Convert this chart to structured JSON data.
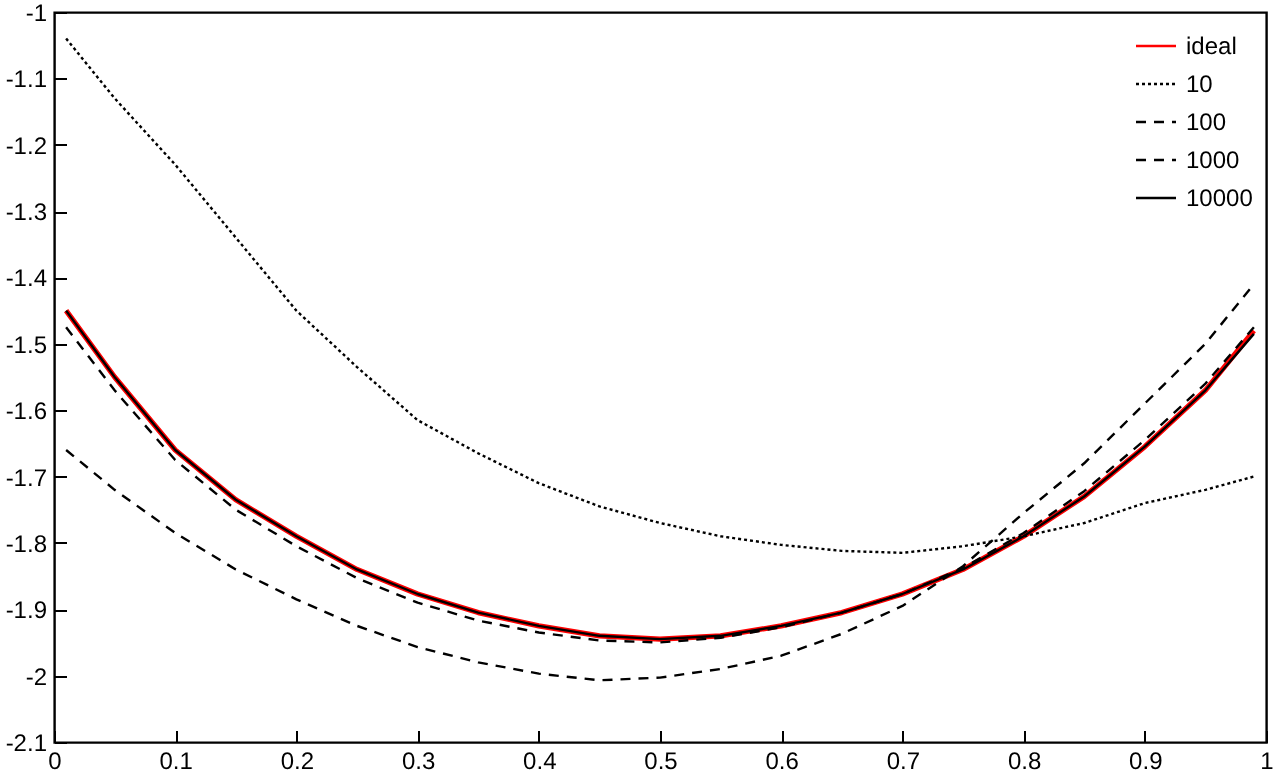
{
  "chart_data": {
    "type": "line",
    "x": [
      0.01,
      0.05,
      0.1,
      0.15,
      0.2,
      0.25,
      0.3,
      0.35,
      0.4,
      0.45,
      0.5,
      0.55,
      0.6,
      0.65,
      0.7,
      0.75,
      0.8,
      0.85,
      0.9,
      0.95,
      0.99
    ],
    "xlim": [
      0,
      1
    ],
    "xticks": [
      0,
      0.1,
      0.2,
      0.3,
      0.4,
      0.5,
      0.6,
      0.7,
      0.8,
      0.9,
      1
    ],
    "ylim": [
      -2.1,
      -1
    ],
    "yticks": [
      -2.1,
      -2,
      -1.9,
      -1.8,
      -1.7,
      -1.6,
      -1.5,
      -1.4,
      -1.3,
      -1.2,
      -1.1,
      -1
    ],
    "grid": false,
    "legend": "top right",
    "marker": "none",
    "series": [
      {
        "name": "ideal",
        "color": "#ff0000",
        "line_style": "solid",
        "values": [
          -1.45,
          -1.55,
          -1.66,
          -1.735,
          -1.79,
          -1.84,
          -1.877,
          -1.905,
          -1.925,
          -1.94,
          -1.945,
          -1.94,
          -1.925,
          -1.905,
          -1.877,
          -1.84,
          -1.79,
          -1.73,
          -1.655,
          -1.57,
          -1.48
        ]
      },
      {
        "name": "10",
        "color": "#000000",
        "line_style": "dotted",
        "values": [
          -1.04,
          -1.13,
          -1.23,
          -1.34,
          -1.45,
          -1.535,
          -1.615,
          -1.665,
          -1.71,
          -1.745,
          -1.77,
          -1.79,
          -1.803,
          -1.812,
          -1.815,
          -1.805,
          -1.79,
          -1.77,
          -1.74,
          -1.72,
          -1.7
        ]
      },
      {
        "name": "100",
        "color": "#000000",
        "line_style": "dashed",
        "values": [
          -1.66,
          -1.72,
          -1.785,
          -1.84,
          -1.885,
          -1.925,
          -1.957,
          -1.98,
          -1.997,
          -2.007,
          -2.003,
          -1.99,
          -1.97,
          -1.937,
          -1.895,
          -1.835,
          -1.755,
          -1.68,
          -1.59,
          -1.5,
          -1.41
        ]
      },
      {
        "name": "1000",
        "color": "#000000",
        "line_style": "dashed",
        "values": [
          -1.475,
          -1.57,
          -1.675,
          -1.75,
          -1.805,
          -1.853,
          -1.89,
          -1.917,
          -1.935,
          -1.947,
          -1.95,
          -1.943,
          -1.927,
          -1.905,
          -1.877,
          -1.838,
          -1.785,
          -1.722,
          -1.645,
          -1.56,
          -1.475
        ]
      },
      {
        "name": "10000",
        "color": "#000000",
        "line_style": "solid",
        "values": [
          -1.45,
          -1.55,
          -1.66,
          -1.735,
          -1.79,
          -1.84,
          -1.877,
          -1.905,
          -1.925,
          -1.94,
          -1.945,
          -1.94,
          -1.925,
          -1.905,
          -1.877,
          -1.84,
          -1.79,
          -1.73,
          -1.655,
          -1.57,
          -1.485
        ]
      }
    ]
  }
}
